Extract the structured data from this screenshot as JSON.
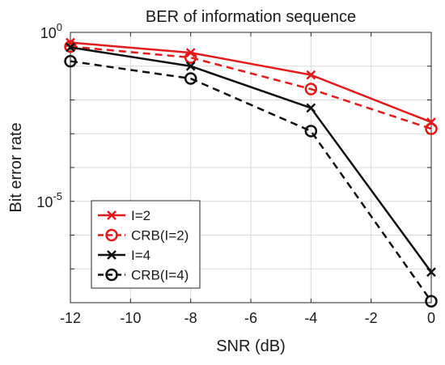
{
  "chart_data": {
    "type": "line",
    "title": "BER of information sequence",
    "xlabel": "SNR (dB)",
    "ylabel": "Bit error rate",
    "x_scale": "linear",
    "y_scale": "log",
    "xlim": [
      -12,
      0
    ],
    "ylim": [
      1e-08,
      1
    ],
    "grid": true,
    "legend_position": "bottom-left",
    "x_ticks": [
      -12,
      -10,
      -8,
      -6,
      -4,
      -2,
      0
    ],
    "x_tick_labels": [
      "-12",
      "-10",
      "-8",
      "-6",
      "-4",
      "-2",
      "0"
    ],
    "y_ticks": [
      {
        "value": 1,
        "base": "10",
        "exp": "0"
      },
      {
        "value": 1e-05,
        "base": "10",
        "exp": "-5"
      }
    ],
    "x": [
      -12,
      -8,
      -4,
      0
    ],
    "series": [
      {
        "name": "I=2",
        "values": [
          0.5,
          0.25,
          0.055,
          0.0022
        ],
        "color": "#e31a1c",
        "line_style": "solid",
        "marker": "x"
      },
      {
        "name": "CRB(I=2)",
        "values": [
          0.38,
          0.18,
          0.021,
          0.0014
        ],
        "color": "#e31a1c",
        "line_style": "dashed",
        "marker": "o"
      },
      {
        "name": "I=4",
        "values": [
          0.36,
          0.1,
          0.0058,
          8e-08
        ],
        "color": "#111111",
        "line_style": "solid",
        "marker": "x"
      },
      {
        "name": "CRB(I=4)",
        "values": [
          0.14,
          0.043,
          0.0012,
          1.1e-08
        ],
        "color": "#111111",
        "line_style": "dashed",
        "marker": "o"
      }
    ]
  }
}
